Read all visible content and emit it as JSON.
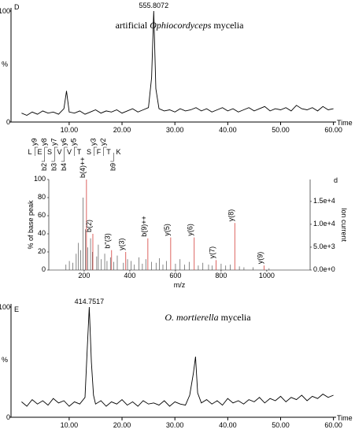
{
  "chart_data": [
    {
      "type": "line",
      "panel_label": "D",
      "title": [
        "artificial ",
        "Ophiocordyceps",
        " mycelia"
      ],
      "title_italic": [
        false,
        true,
        false
      ],
      "annotation": "555.8072",
      "xlabel": "Time",
      "ylabel": "%",
      "color": "#000000",
      "xlim": [
        -1,
        60.5
      ],
      "ylim": [
        0,
        100
      ],
      "yticks": [
        0,
        100
      ],
      "xticks": [
        {
          "value": 10,
          "label": "10.00"
        },
        {
          "value": 20,
          "label": "20.00"
        },
        {
          "value": 30,
          "label": "30.00"
        },
        {
          "value": 40,
          "label": "40.00"
        },
        {
          "value": 50,
          "label": "50.00"
        },
        {
          "value": 60,
          "label": "60.00"
        }
      ],
      "x": [
        1,
        2,
        3,
        4,
        5,
        6,
        7,
        8,
        9,
        9.5,
        10,
        11,
        12,
        13,
        14,
        15,
        16,
        17,
        18,
        19,
        20,
        21,
        22,
        23,
        24,
        25,
        25.6,
        26,
        26.4,
        27,
        28,
        29,
        30,
        31,
        32,
        33,
        34,
        35,
        36,
        37,
        38,
        39,
        40,
        41,
        42,
        43,
        44,
        45,
        46,
        47,
        48,
        49,
        50,
        51,
        52,
        53,
        54,
        55,
        56,
        57,
        58,
        59,
        60
      ],
      "values": [
        8,
        6,
        9,
        7,
        10,
        8,
        9,
        7,
        12,
        28,
        9,
        8,
        10,
        7,
        9,
        11,
        8,
        10,
        9,
        11,
        8,
        10,
        12,
        9,
        11,
        13,
        40,
        100,
        30,
        12,
        10,
        11,
        9,
        12,
        10,
        11,
        13,
        10,
        12,
        9,
        11,
        13,
        10,
        12,
        9,
        11,
        13,
        10,
        12,
        14,
        10,
        12,
        11,
        13,
        10,
        15,
        12,
        11,
        13,
        10,
        14,
        11,
        12
      ]
    },
    {
      "type": "spectrum",
      "panel_label": "d",
      "xlabel": "m/z",
      "ylabel": "% of base peak",
      "y2label": "Ion current",
      "sequence": [
        "L",
        "E",
        "S",
        "V",
        "V",
        "T",
        "S",
        "F",
        "T",
        "K"
      ],
      "y_ions": [
        "y9",
        "y8",
        "y7",
        "y6",
        "y5",
        "y3",
        "y2"
      ],
      "b_ions": [
        "b2",
        "b3",
        "b4",
        "b9"
      ],
      "color": "#555555",
      "annotation_color": "#d9534f",
      "xlim": [
        45,
        1190
      ],
      "ylim": [
        0,
        100
      ],
      "y2lim": [
        0,
        19800
      ],
      "xticks": [
        200,
        400,
        600,
        800,
        1000
      ],
      "yticks": [
        0,
        20,
        40,
        60,
        80,
        100
      ],
      "y2ticks": [
        {
          "value": 0,
          "label": "0.0e+0"
        },
        {
          "value": 5000,
          "label": "5.0e+3"
        },
        {
          "value": 10000,
          "label": "1.0e+4"
        },
        {
          "value": 15000,
          "label": "1.5e+4"
        }
      ],
      "peaks": {
        "x": [
          120,
          135,
          150,
          165,
          175,
          185,
          195,
          205,
          215,
          228,
          236,
          255,
          262,
          275,
          290,
          300,
          315,
          330,
          345,
          372,
          390,
          405,
          420,
          440,
          455,
          470,
          495,
          515,
          530,
          545,
          560,
          600,
          620,
          640,
          660,
          700,
          720,
          745,
          760,
          800,
          820,
          840,
          880,
          900,
          940,
          1010
        ],
        "values": [
          6,
          10,
          8,
          18,
          30,
          22,
          80,
          45,
          25,
          35,
          20,
          15,
          28,
          12,
          18,
          10,
          14,
          9,
          16,
          8,
          12,
          10,
          6,
          14,
          7,
          12,
          9,
          8,
          13,
          6,
          10,
          7,
          12,
          6,
          9,
          5,
          8,
          6,
          5,
          7,
          5,
          6,
          4,
          3,
          3,
          2
        ]
      },
      "annotated_peaks": {
        "labels": [
          "b(4)++",
          "b(2)",
          "b''(3)",
          "y(3)",
          "b(9)++",
          "y(5)",
          "y(6)",
          "y(7)",
          "y(8)",
          "y(9)"
        ],
        "x": [
          210,
          238,
          320,
          382,
          479,
          579,
          682,
          778,
          860,
          988
        ],
        "values": [
          100,
          40,
          22,
          20,
          35,
          36,
          36,
          11,
          52,
          5
        ]
      }
    },
    {
      "type": "line",
      "panel_label": "E",
      "title": [
        "O. mortierella",
        " mycelia"
      ],
      "title_italic": [
        true,
        false
      ],
      "annotation": "414.7517",
      "xlabel": "Time",
      "ylabel": "%",
      "color": "#000000",
      "xlim": [
        -1,
        60.5
      ],
      "ylim": [
        0,
        100
      ],
      "yticks": [
        0,
        100
      ],
      "xticks": [
        {
          "value": 10,
          "label": "10.00"
        },
        {
          "value": 20,
          "label": "20.00"
        },
        {
          "value": 30,
          "label": "30.00"
        },
        {
          "value": 40,
          "label": "40.00"
        },
        {
          "value": 50,
          "label": "50.00"
        },
        {
          "value": 60,
          "label": "60.00"
        }
      ],
      "x": [
        1,
        2,
        3,
        4,
        5,
        6,
        7,
        8,
        9,
        10,
        11,
        12,
        13,
        13.4,
        13.8,
        14.2,
        14.6,
        15,
        16,
        17,
        18,
        19,
        20,
        21,
        22,
        23,
        24,
        25,
        26,
        27,
        28,
        29,
        30,
        31,
        32,
        32.8,
        33.5,
        33.9,
        34.3,
        35,
        36,
        37,
        38,
        39,
        40,
        41,
        42,
        43,
        44,
        45,
        46,
        47,
        48,
        49,
        50,
        51,
        52,
        53,
        54,
        55,
        56,
        57,
        58,
        59,
        60
      ],
      "values": [
        14,
        10,
        16,
        12,
        15,
        11,
        17,
        13,
        15,
        10,
        14,
        12,
        18,
        60,
        100,
        50,
        20,
        12,
        15,
        10,
        14,
        12,
        16,
        11,
        14,
        10,
        15,
        12,
        13,
        11,
        15,
        10,
        14,
        12,
        11,
        20,
        40,
        55,
        22,
        13,
        16,
        12,
        15,
        11,
        17,
        13,
        15,
        12,
        16,
        14,
        18,
        13,
        17,
        15,
        19,
        14,
        18,
        16,
        20,
        15,
        19,
        17,
        21,
        18,
        20
      ]
    }
  ]
}
